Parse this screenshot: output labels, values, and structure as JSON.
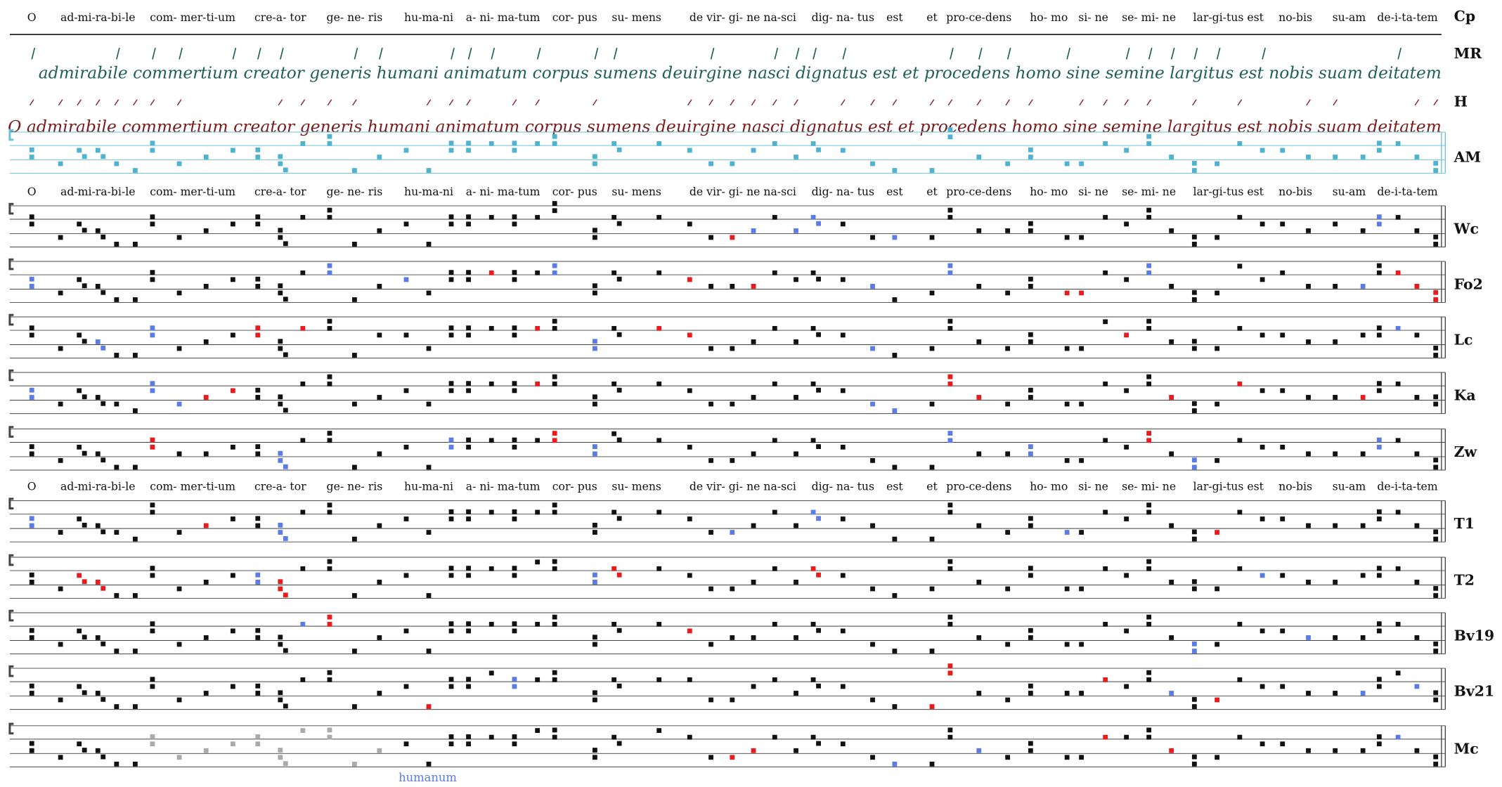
{
  "labels": {
    "cp": "Cp",
    "mr": "MR",
    "h": "H",
    "am": "AM"
  },
  "staves": [
    "Wc",
    "Fo2",
    "Lc",
    "Ka",
    "Zw",
    "T1",
    "T2",
    "Bv19",
    "Bv21",
    "Mc"
  ],
  "syllables": [
    "O",
    "ad-mi-ra-bi-le",
    "com- mer-ti-um",
    "cre-a- tor",
    "ge- ne- ris",
    "hu-ma-ni",
    "a- ni- ma-tum",
    "cor- pus",
    "su- mens",
    "de vir- gi- ne na-sci",
    "dig- na- tus",
    "est",
    "et",
    "pro-ce-dens",
    "ho- mo",
    "si- ne",
    "se- mi- ne",
    "lar-gi-tus est",
    "no-bis",
    "su-am",
    "de-i-ta-tem"
  ],
  "manuscript_mr": "admirabile commertium creator generis humani animatum corpus sumens deuirgine nasci dignatus est et procedens homo sine semine largitus est nobis suam deitatem",
  "manuscript_red": "O admirabile commertium creator generis humani animatum corpus sumens deuirgine nasci dignatus est et procedens homo sine semine largitus est nobis suam deitatem",
  "variant_note": "humanum"
}
